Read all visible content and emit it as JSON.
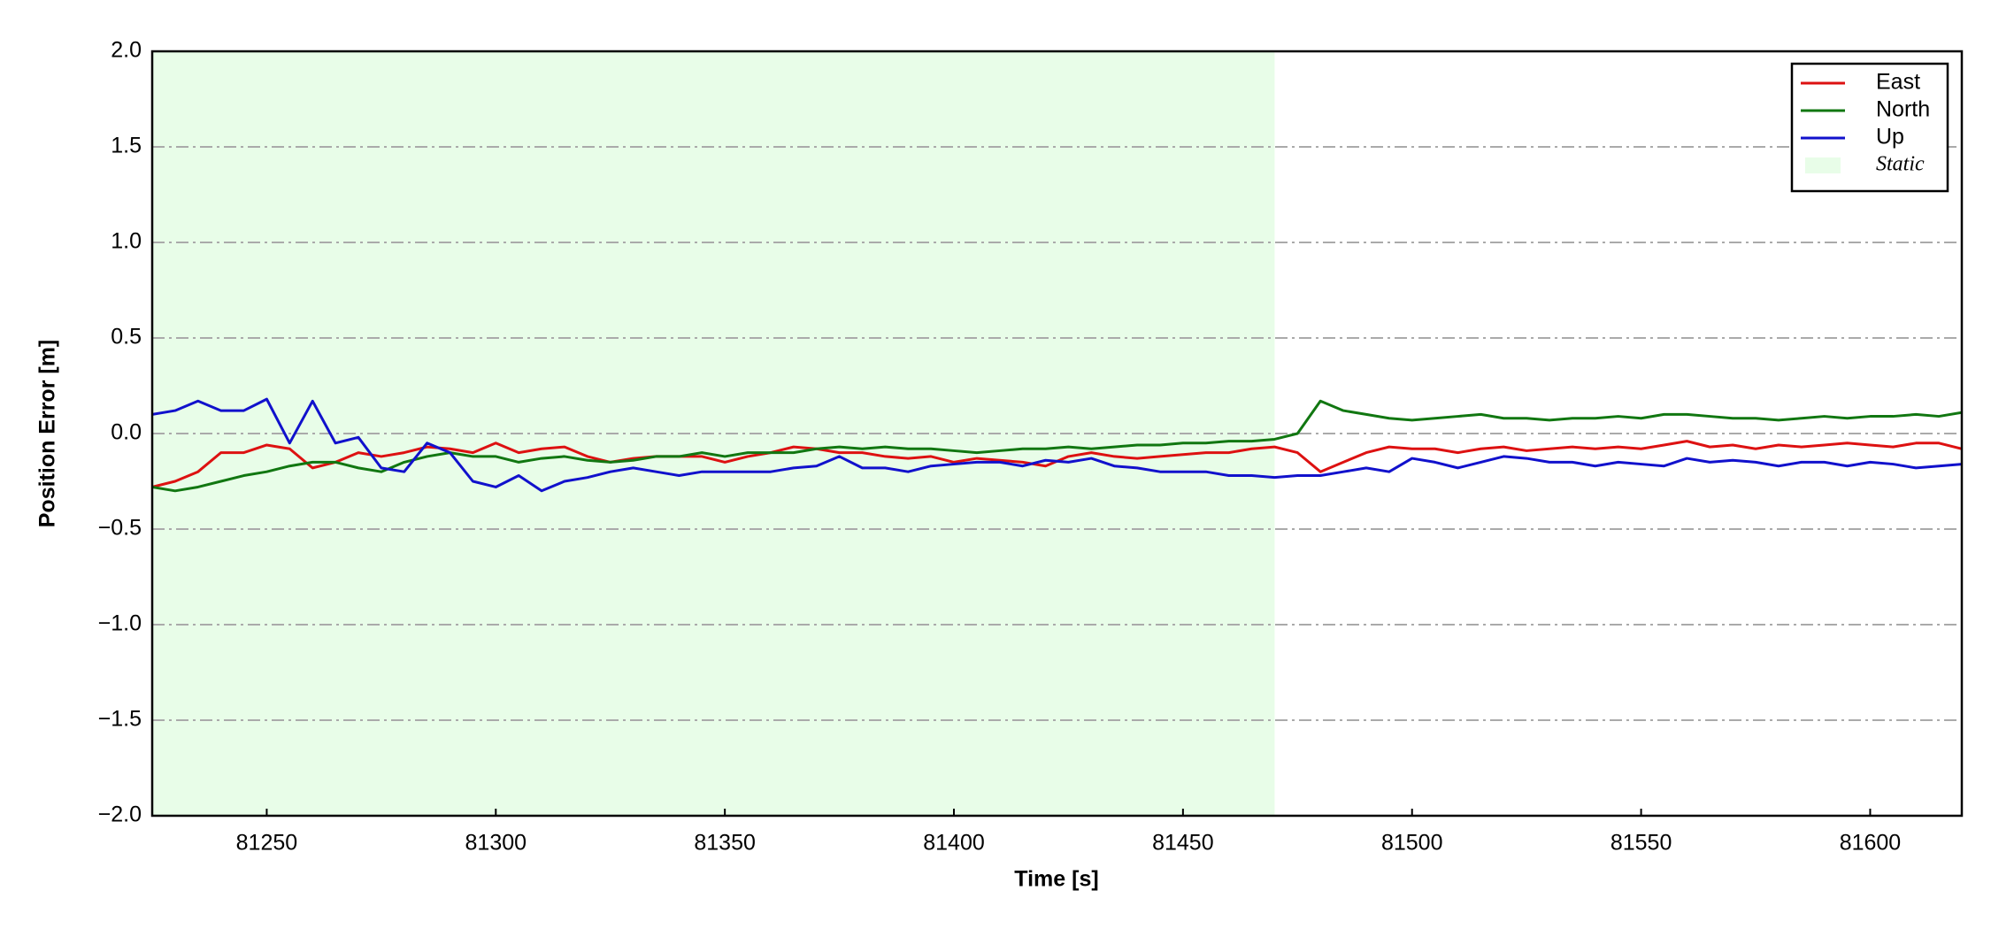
{
  "chart_data": {
    "type": "line",
    "xlabel": "Time [s]",
    "ylabel": "Position Error [m]",
    "x": [
      81225,
      81230,
      81235,
      81240,
      81245,
      81250,
      81255,
      81260,
      81265,
      81270,
      81275,
      81280,
      81285,
      81290,
      81295,
      81300,
      81305,
      81310,
      81315,
      81320,
      81325,
      81330,
      81335,
      81340,
      81345,
      81350,
      81355,
      81360,
      81365,
      81370,
      81375,
      81380,
      81385,
      81390,
      81395,
      81400,
      81405,
      81410,
      81415,
      81420,
      81425,
      81430,
      81435,
      81440,
      81445,
      81450,
      81455,
      81460,
      81465,
      81470,
      81475,
      81480,
      81485,
      81490,
      81495,
      81500,
      81505,
      81510,
      81515,
      81520,
      81525,
      81530,
      81535,
      81540,
      81545,
      81550,
      81555,
      81560,
      81565,
      81570,
      81575,
      81580,
      81585,
      81590,
      81595,
      81600,
      81605,
      81610,
      81615,
      81620
    ],
    "series": [
      {
        "name": "East",
        "color": "#dd1111",
        "values": [
          -0.28,
          -0.25,
          -0.2,
          -0.1,
          -0.1,
          -0.06,
          -0.08,
          -0.18,
          -0.15,
          -0.1,
          -0.12,
          -0.1,
          -0.07,
          -0.08,
          -0.1,
          -0.05,
          -0.1,
          -0.08,
          -0.07,
          -0.12,
          -0.15,
          -0.13,
          -0.12,
          -0.12,
          -0.12,
          -0.15,
          -0.12,
          -0.1,
          -0.07,
          -0.08,
          -0.1,
          -0.1,
          -0.12,
          -0.13,
          -0.12,
          -0.15,
          -0.13,
          -0.14,
          -0.15,
          -0.17,
          -0.12,
          -0.1,
          -0.12,
          -0.13,
          -0.12,
          -0.11,
          -0.1,
          -0.1,
          -0.08,
          -0.07,
          -0.1,
          -0.2,
          -0.15,
          -0.1,
          -0.07,
          -0.08,
          -0.08,
          -0.1,
          -0.08,
          -0.07,
          -0.09,
          -0.08,
          -0.07,
          -0.08,
          -0.07,
          -0.08,
          -0.06,
          -0.04,
          -0.07,
          -0.06,
          -0.08,
          -0.06,
          -0.07,
          -0.06,
          -0.05,
          -0.06,
          -0.07,
          -0.05,
          -0.05,
          -0.08
        ]
      },
      {
        "name": "North",
        "color": "#117711",
        "values": [
          -0.28,
          -0.3,
          -0.28,
          -0.25,
          -0.22,
          -0.2,
          -0.17,
          -0.15,
          -0.15,
          -0.18,
          -0.2,
          -0.15,
          -0.12,
          -0.1,
          -0.12,
          -0.12,
          -0.15,
          -0.13,
          -0.12,
          -0.14,
          -0.15,
          -0.14,
          -0.12,
          -0.12,
          -0.1,
          -0.12,
          -0.1,
          -0.1,
          -0.1,
          -0.08,
          -0.07,
          -0.08,
          -0.07,
          -0.08,
          -0.08,
          -0.09,
          -0.1,
          -0.09,
          -0.08,
          -0.08,
          -0.07,
          -0.08,
          -0.07,
          -0.06,
          -0.06,
          -0.05,
          -0.05,
          -0.04,
          -0.04,
          -0.03,
          0.0,
          0.17,
          0.12,
          0.1,
          0.08,
          0.07,
          0.08,
          0.09,
          0.1,
          0.08,
          0.08,
          0.07,
          0.08,
          0.08,
          0.09,
          0.08,
          0.1,
          0.1,
          0.09,
          0.08,
          0.08,
          0.07,
          0.08,
          0.09,
          0.08,
          0.09,
          0.09,
          0.1,
          0.09,
          0.11
        ]
      },
      {
        "name": "Up",
        "color": "#1111cc",
        "values": [
          0.1,
          0.12,
          0.17,
          0.12,
          0.12,
          0.18,
          -0.05,
          0.17,
          -0.05,
          -0.02,
          -0.18,
          -0.2,
          -0.05,
          -0.1,
          -0.25,
          -0.28,
          -0.22,
          -0.3,
          -0.25,
          -0.23,
          -0.2,
          -0.18,
          -0.2,
          -0.22,
          -0.2,
          -0.2,
          -0.2,
          -0.2,
          -0.18,
          -0.17,
          -0.12,
          -0.18,
          -0.18,
          -0.2,
          -0.17,
          -0.16,
          -0.15,
          -0.15,
          -0.17,
          -0.14,
          -0.15,
          -0.13,
          -0.17,
          -0.18,
          -0.2,
          -0.2,
          -0.2,
          -0.22,
          -0.22,
          -0.23,
          -0.22,
          -0.22,
          -0.2,
          -0.18,
          -0.2,
          -0.13,
          -0.15,
          -0.18,
          -0.15,
          -0.12,
          -0.13,
          -0.15,
          -0.15,
          -0.17,
          -0.15,
          -0.16,
          -0.17,
          -0.13,
          -0.15,
          -0.14,
          -0.15,
          -0.17,
          -0.15,
          -0.15,
          -0.17,
          -0.15,
          -0.16,
          -0.18,
          -0.17,
          -0.16
        ]
      }
    ],
    "shade": {
      "name": "Static",
      "color": "#e8fde8",
      "x": [
        81225,
        81470
      ]
    },
    "xlim": [
      81225,
      81620
    ],
    "xticks": [
      81250,
      81300,
      81350,
      81400,
      81450,
      81500,
      81550,
      81600
    ],
    "ylim": [
      -2,
      2
    ],
    "yticks": [
      {
        "value": -2,
        "label": "−2.0"
      },
      {
        "value": -1.5,
        "label": "−1.5"
      },
      {
        "value": -1,
        "label": "−1.0"
      },
      {
        "value": -0.5,
        "label": "−0.5"
      },
      {
        "value": 0,
        "label": "0.0"
      },
      0.5,
      {
        "value": 1,
        "label": "1.0"
      },
      1.5,
      {
        "value": 2,
        "label": "2.0"
      }
    ],
    "grid": true,
    "legend": "upper right"
  }
}
